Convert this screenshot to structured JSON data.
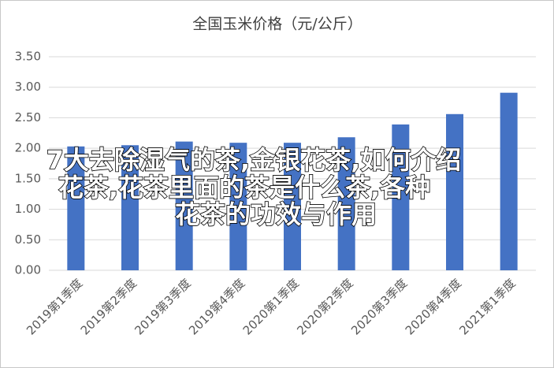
{
  "chart_data": {
    "type": "bar",
    "title": "全国玉米价格（元/公斤）",
    "categories": [
      "2019第1季度",
      "2019第2季度",
      "2019第3季度",
      "2019第4季度",
      "2020第1季度",
      "2020第2季度",
      "2020第3季度",
      "2020第4季度",
      "2021第1季度"
    ],
    "values": [
      2.03,
      2.05,
      2.11,
      2.09,
      2.09,
      2.18,
      2.39,
      2.56,
      2.91
    ],
    "color": "#4472c4",
    "ylim": [
      0,
      3.5
    ],
    "yticks": [
      {
        "value": 0,
        "label": "0.00"
      },
      {
        "value": 0.5,
        "label": "0.50"
      },
      {
        "value": 1,
        "label": "1.00"
      },
      {
        "value": 1.5,
        "label": "1.50"
      },
      {
        "value": 2,
        "label": "2.00"
      },
      {
        "value": 2.5,
        "label": "2.50"
      },
      {
        "value": 3,
        "label": "3.00"
      },
      {
        "value": 3.5,
        "label": "3.50"
      }
    ],
    "grid": true,
    "annotation": [
      "7大去除湿气的茶,金银花茶,如何介绍",
      "花茶,花茶里面的茶是什么茶,各种",
      "花茶的功效与作用"
    ]
  }
}
